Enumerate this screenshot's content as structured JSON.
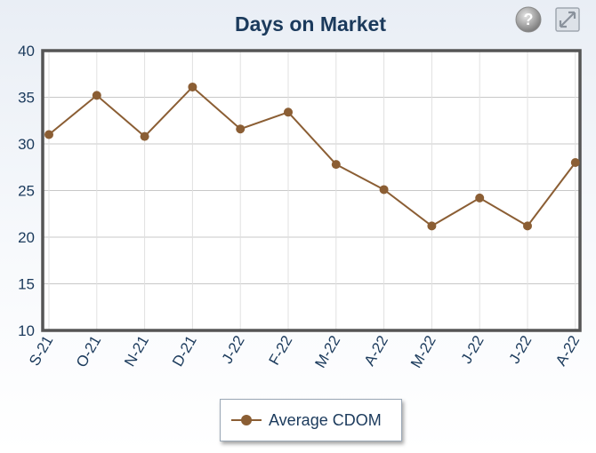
{
  "chart_data": {
    "type": "line",
    "title": "Days on Market",
    "categories": [
      "S-21",
      "O-21",
      "N-21",
      "D-21",
      "J-22",
      "F-22",
      "M-22",
      "A-22",
      "M-22",
      "J-22",
      "J-22",
      "A-22"
    ],
    "series": [
      {
        "name": "Average CDOM",
        "values": [
          31.0,
          35.2,
          30.8,
          36.1,
          31.6,
          33.4,
          27.8,
          25.1,
          21.2,
          24.2,
          21.2,
          28.0
        ]
      }
    ],
    "ylim": [
      10,
      40
    ],
    "yticks": [
      10,
      15,
      20,
      25,
      30,
      35,
      40
    ],
    "grid": true,
    "legend": "bottom-center",
    "colors": {
      "series": "#8b5e34",
      "frame": "#555555",
      "grid": "#c8c8c8",
      "text": "#1b3a5c"
    }
  },
  "toolbar": {
    "help_icon": "help-icon",
    "expand_icon": "expand-icon"
  }
}
